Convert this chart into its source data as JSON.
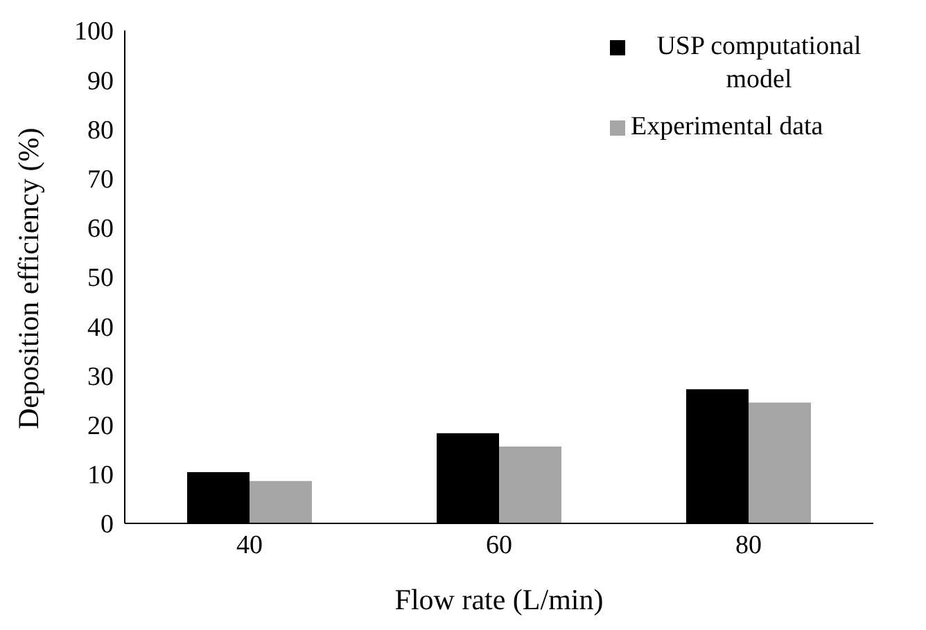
{
  "chart_data": {
    "type": "bar",
    "xlabel": "Flow rate (L/min)",
    "ylabel": "Deposition efficiency  (%)",
    "categories": [
      "40",
      "60",
      "80"
    ],
    "series": [
      {
        "name": "USP computational model",
        "color": "#000000",
        "values": [
          10.4,
          18.3,
          27.2
        ]
      },
      {
        "name": "Experimental data",
        "color": "#a6a6a6",
        "values": [
          8.6,
          15.6,
          24.5
        ]
      }
    ],
    "ylim": [
      0,
      100
    ],
    "yticks": [
      0,
      10,
      20,
      30,
      40,
      50,
      60,
      70,
      80,
      90,
      100
    ],
    "grid": false,
    "legend": "top right"
  }
}
